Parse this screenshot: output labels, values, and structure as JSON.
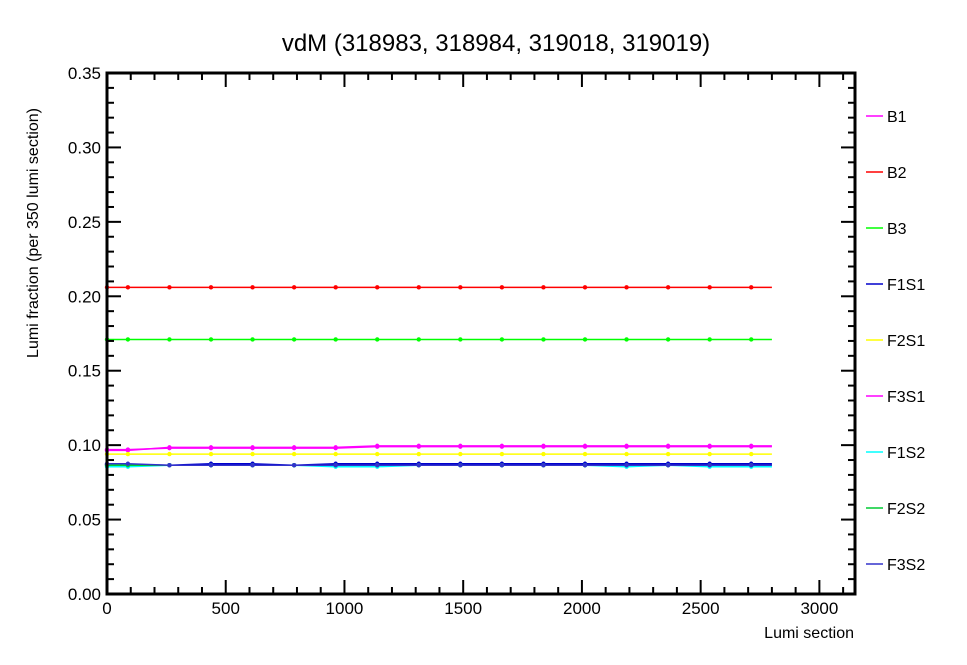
{
  "chart_data": {
    "type": "line",
    "title": "vdM (318983, 318984, 319018, 319019)",
    "xlabel": "Lumi section",
    "ylabel": "Lumi fraction (per 350 lumi section)",
    "xlim": [
      0,
      3150
    ],
    "ylim": [
      0,
      0.35
    ],
    "x_ticks": [
      "0",
      "500",
      "1000",
      "1500",
      "2000",
      "2500",
      "3000"
    ],
    "y_ticks": [
      "0.00",
      "0.05",
      "0.10",
      "0.15",
      "0.20",
      "0.25",
      "0.30",
      "0.35"
    ],
    "grid": false,
    "legend_position": "right",
    "x": [
      0,
      88,
      263,
      438,
      613,
      788,
      963,
      1138,
      1313,
      1488,
      1663,
      1838,
      2013,
      2188,
      2363,
      2538,
      2713
    ],
    "x_end": 2800,
    "series": [
      {
        "name": "B1",
        "color": "#ff00ff",
        "values": [
          0.0965,
          0.0965,
          0.0985,
          0.0985,
          0.0985,
          0.0985,
          0.0985,
          0.0995,
          0.0995,
          0.0995,
          0.0995,
          0.0995,
          0.0995,
          0.0995,
          0.0995,
          0.0995,
          0.0995
        ]
      },
      {
        "name": "B2",
        "color": "#ff0000",
        "values": [
          0.206,
          0.206,
          0.206,
          0.206,
          0.206,
          0.206,
          0.206,
          0.206,
          0.206,
          0.206,
          0.206,
          0.206,
          0.206,
          0.206,
          0.206,
          0.206,
          0.206
        ]
      },
      {
        "name": "B3",
        "color": "#00ff00",
        "values": [
          0.171,
          0.171,
          0.171,
          0.171,
          0.171,
          0.171,
          0.171,
          0.171,
          0.171,
          0.171,
          0.171,
          0.171,
          0.171,
          0.171,
          0.171,
          0.171,
          0.171
        ]
      },
      {
        "name": "F1S1",
        "color": "#0000cc",
        "values": [
          0.087,
          0.087,
          0.0865,
          0.0875,
          0.0875,
          0.0865,
          0.0875,
          0.0875,
          0.0875,
          0.0875,
          0.0875,
          0.0875,
          0.0875,
          0.0875,
          0.0875,
          0.0875,
          0.0875
        ]
      },
      {
        "name": "F2S1",
        "color": "#ffff00",
        "values": [
          0.094,
          0.094,
          0.094,
          0.094,
          0.094,
          0.094,
          0.094,
          0.094,
          0.094,
          0.094,
          0.094,
          0.094,
          0.094,
          0.094,
          0.094,
          0.094,
          0.094
        ]
      },
      {
        "name": "F3S1",
        "color": "#ff00ff",
        "values": [
          0.097,
          0.097,
          0.098,
          0.098,
          0.098,
          0.098,
          0.098,
          0.099,
          0.099,
          0.099,
          0.099,
          0.099,
          0.099,
          0.099,
          0.099,
          0.099,
          0.099
        ]
      },
      {
        "name": "F1S2",
        "color": "#00ffff",
        "values": [
          0.0855,
          0.0855,
          0.0865,
          0.0865,
          0.0865,
          0.0865,
          0.0855,
          0.0855,
          0.0865,
          0.0865,
          0.0865,
          0.0865,
          0.0865,
          0.0855,
          0.0865,
          0.0855,
          0.0855
        ]
      },
      {
        "name": "F2S2",
        "color": "#00cc33",
        "values": [
          0.0865,
          0.0865,
          0.0865,
          0.0865,
          0.0865,
          0.0865,
          0.0865,
          0.0865,
          0.0865,
          0.0865,
          0.0865,
          0.0865,
          0.0865,
          0.0865,
          0.0865,
          0.0865,
          0.0865
        ]
      },
      {
        "name": "F3S2",
        "color": "#3333cc",
        "values": [
          0.0875,
          0.0875,
          0.0865,
          0.0865,
          0.0865,
          0.0865,
          0.0865,
          0.0865,
          0.0865,
          0.0865,
          0.0865,
          0.0865,
          0.0865,
          0.0865,
          0.0865,
          0.0865,
          0.0865
        ]
      }
    ]
  }
}
